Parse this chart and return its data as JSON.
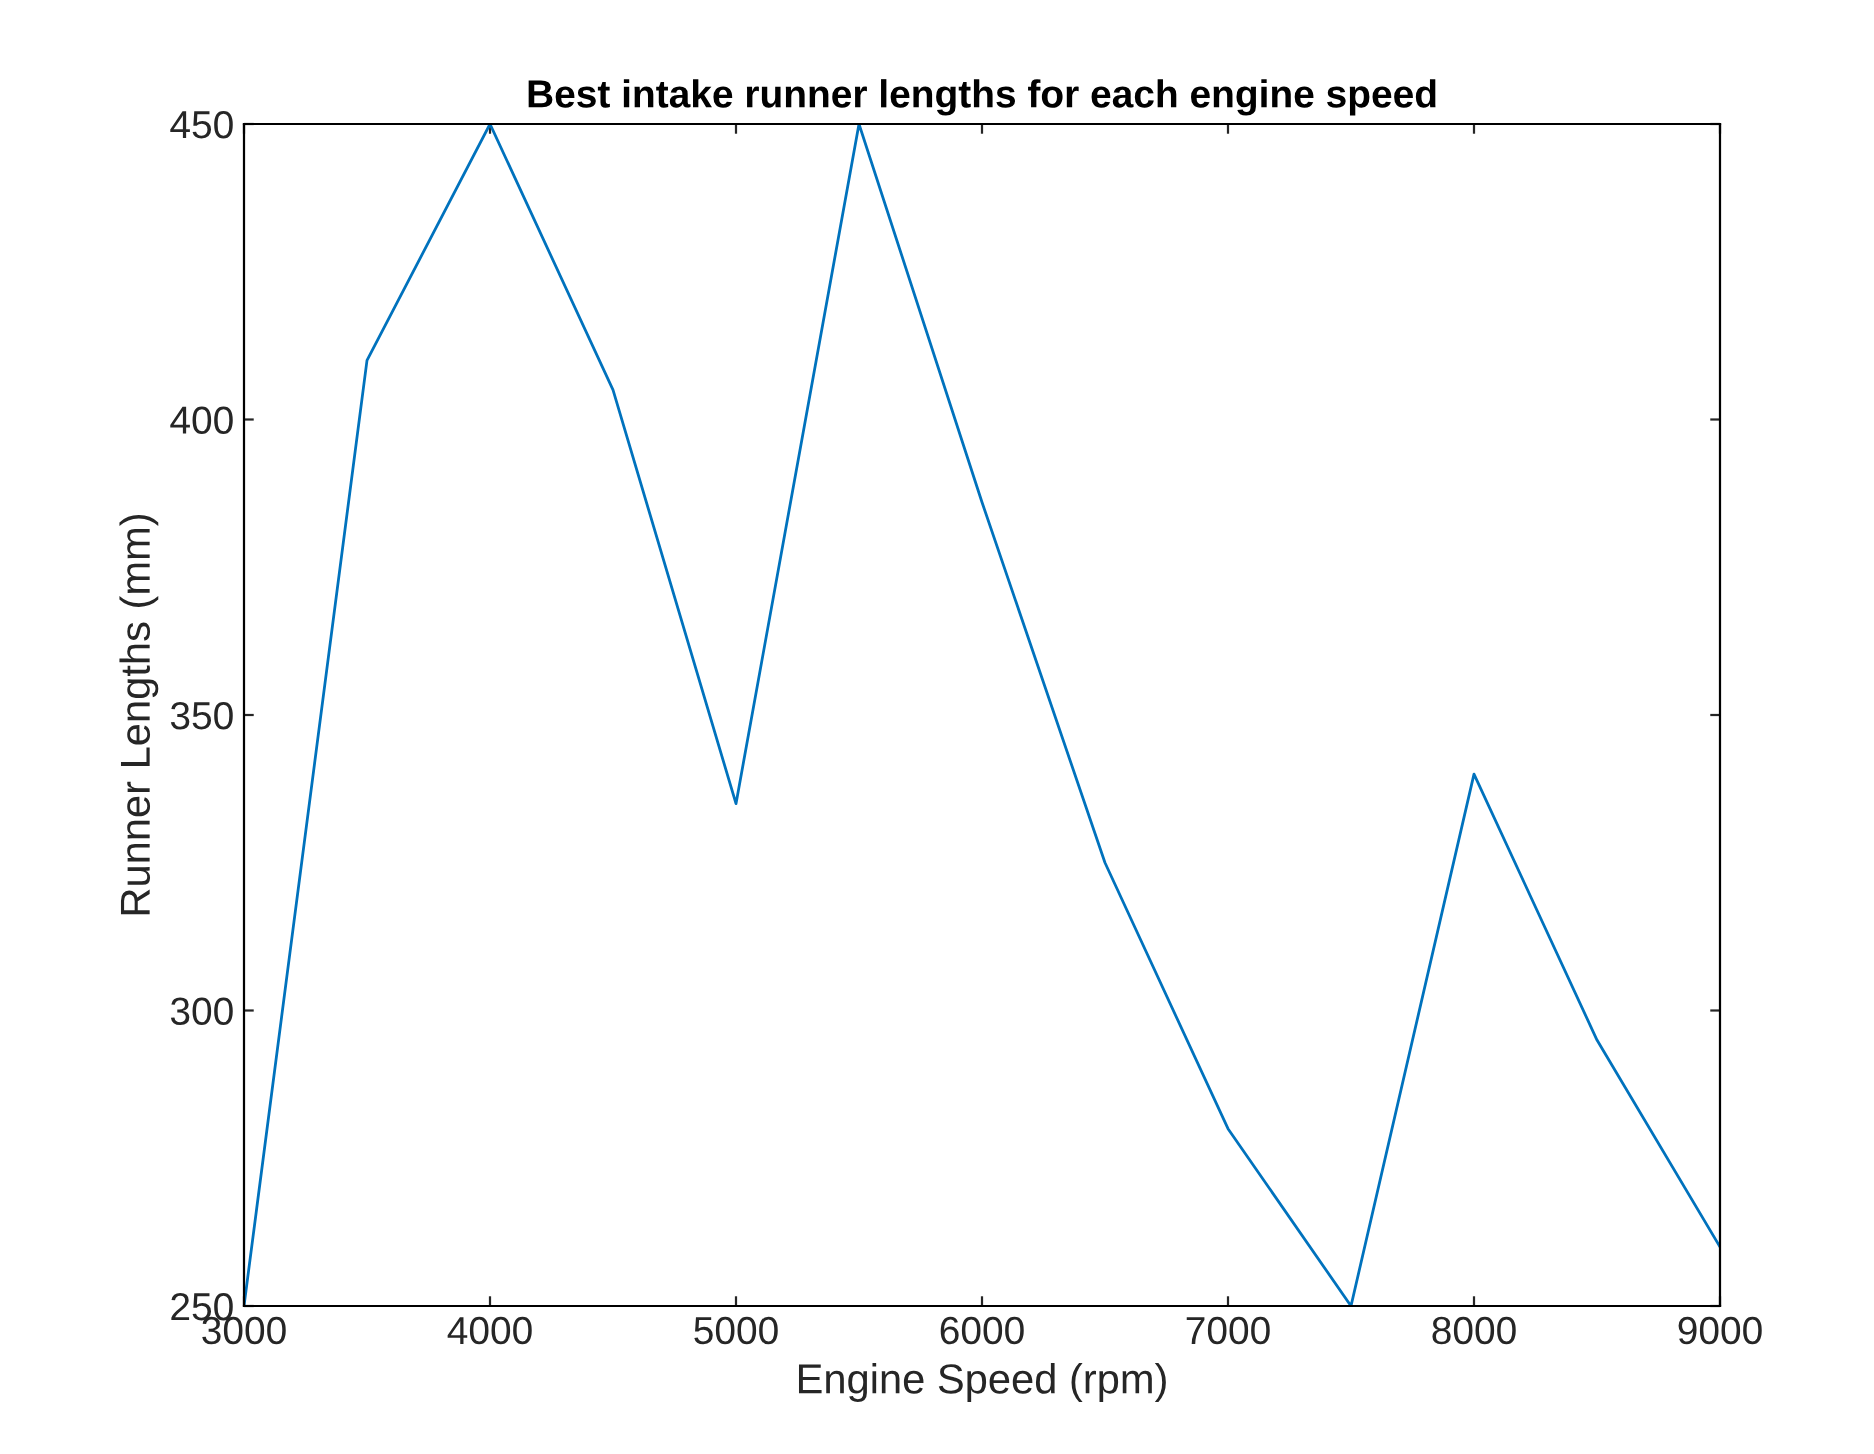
{
  "chart_data": {
    "type": "line",
    "title": "Best intake runner lengths for each engine speed",
    "xlabel": "Engine Speed (rpm)",
    "ylabel": "Runner Lengths (mm)",
    "x": [
      3000,
      3500,
      4000,
      4500,
      5000,
      5500,
      6000,
      6500,
      7000,
      7500,
      8000,
      8500,
      9000
    ],
    "series": [
      {
        "color": "#0072bd",
        "values": [
          250,
          410,
          450,
          405,
          335,
          450,
          386,
          325,
          280,
          250,
          340,
          295,
          260
        ]
      }
    ],
    "xlim": [
      3000,
      9000
    ],
    "ylim": [
      250,
      450
    ],
    "xticks": [
      3000,
      4000,
      5000,
      6000,
      7000,
      8000,
      9000
    ],
    "yticks": [
      250,
      300,
      350,
      400,
      450
    ],
    "grid": false,
    "legend": false,
    "marker": "none",
    "line_style": "solid"
  }
}
